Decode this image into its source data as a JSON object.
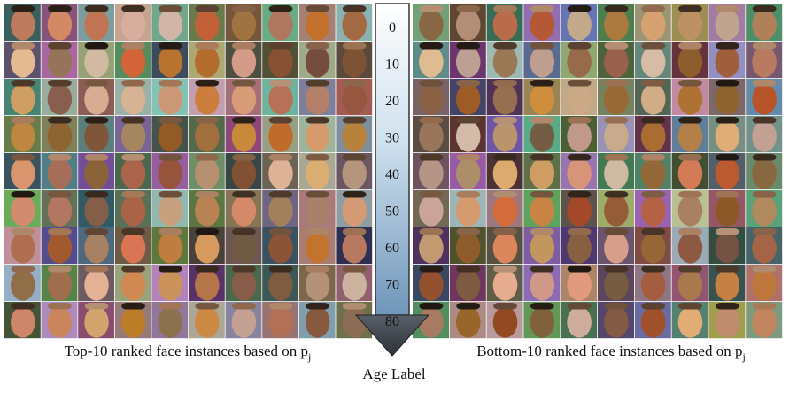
{
  "age_axis": {
    "title": "Age Label",
    "labels": [
      "0",
      "10",
      "20",
      "30",
      "40",
      "50",
      "60",
      "70",
      "80"
    ]
  },
  "left_panel": {
    "caption": {
      "text": "Top-10 ranked face instances based on p",
      "subscript": "j"
    }
  },
  "right_panel": {
    "caption": {
      "text": "Bottom-10 ranked face instances based on p",
      "subscript": "j"
    }
  }
}
